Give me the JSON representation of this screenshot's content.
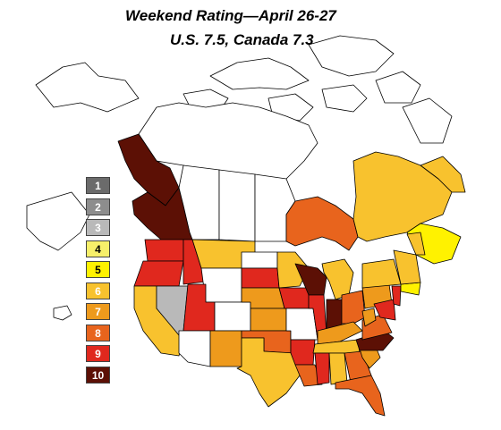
{
  "title_line1": "Weekend Rating—April 26-27",
  "title_line2": "U.S. 7.5, Canada 7.3",
  "legend": [
    {
      "label": "1",
      "color": "#6b6b6b",
      "text_color": "#ffffff"
    },
    {
      "label": "2",
      "color": "#8d8d8d",
      "text_color": "#ffffff"
    },
    {
      "label": "3",
      "color": "#b9b9b9",
      "text_color": "#ffffff"
    },
    {
      "label": "4",
      "color": "#f7ef6a",
      "text_color": "#000000"
    },
    {
      "label": "5",
      "color": "#fff200",
      "text_color": "#000000"
    },
    {
      "label": "6",
      "color": "#f8c22e",
      "text_color": "#ffffff"
    },
    {
      "label": "7",
      "color": "#ee9a1c",
      "text_color": "#ffffff"
    },
    {
      "label": "8",
      "color": "#e8641d",
      "text_color": "#ffffff"
    },
    {
      "label": "9",
      "color": "#e0281e",
      "text_color": "#ffffff"
    },
    {
      "label": "10",
      "color": "#5c1005",
      "text_color": "#ffffff"
    }
  ],
  "regions": {
    "canada_north": {
      "rating": null,
      "color": "#ffffff"
    },
    "yukon": {
      "rating": 10,
      "color": "#5c1005"
    },
    "british_columbia": {
      "rating": 10,
      "color": "#5c1005"
    },
    "alberta": {
      "rating": null,
      "color": "#ffffff"
    },
    "saskatchewan": {
      "rating": null,
      "color": "#ffffff"
    },
    "manitoba": {
      "rating": null,
      "color": "#ffffff"
    },
    "ontario": {
      "rating": 8,
      "color": "#e8641d"
    },
    "quebec": {
      "rating": 6,
      "color": "#f8c22e"
    },
    "newfoundland": {
      "rating": 6,
      "color": "#f8c22e"
    },
    "maritimes": {
      "rating": 5,
      "color": "#fff200"
    },
    "washington": {
      "rating": 9,
      "color": "#e0281e"
    },
    "oregon": {
      "rating": 9,
      "color": "#e0281e"
    },
    "california": {
      "rating": 6,
      "color": "#f8c22e"
    },
    "nevada": {
      "rating": 3,
      "color": "#b9b9b9"
    },
    "idaho": {
      "rating": 9,
      "color": "#e0281e"
    },
    "montana": {
      "rating": 6,
      "color": "#f8c22e"
    },
    "wyoming": {
      "rating": null,
      "color": "#ffffff"
    },
    "utah": {
      "rating": 9,
      "color": "#e0281e"
    },
    "arizona": {
      "rating": null,
      "color": "#ffffff"
    },
    "colorado": {
      "rating": null,
      "color": "#ffffff"
    },
    "new_mexico": {
      "rating": 7,
      "color": "#ee9a1c"
    },
    "north_dakota": {
      "rating": null,
      "color": "#ffffff"
    },
    "south_dakota": {
      "rating": 9,
      "color": "#e0281e"
    },
    "nebraska": {
      "rating": 7,
      "color": "#ee9a1c"
    },
    "kansas": {
      "rating": 7,
      "color": "#ee9a1c"
    },
    "oklahoma": {
      "rating": 8,
      "color": "#e8641d"
    },
    "texas": {
      "rating": 6,
      "color": "#f8c22e"
    },
    "minnesota": {
      "rating": 6,
      "color": "#f8c22e"
    },
    "iowa": {
      "rating": 9,
      "color": "#e0281e"
    },
    "missouri": {
      "rating": null,
      "color": "#ffffff"
    },
    "arkansas": {
      "rating": 9,
      "color": "#e0281e"
    },
    "louisiana": {
      "rating": 8,
      "color": "#e8641d"
    },
    "wisconsin": {
      "rating": 10,
      "color": "#5c1005"
    },
    "illinois": {
      "rating": 9,
      "color": "#e0281e"
    },
    "michigan": {
      "rating": 6,
      "color": "#f8c22e"
    },
    "indiana": {
      "rating": 10,
      "color": "#5c1005"
    },
    "ohio": {
      "rating": 8,
      "color": "#e8641d"
    },
    "kentucky": {
      "rating": 7,
      "color": "#ee9a1c"
    },
    "tennessee": {
      "rating": 6,
      "color": "#f8c22e"
    },
    "mississippi": {
      "rating": 9,
      "color": "#e0281e"
    },
    "alabama": {
      "rating": 6,
      "color": "#f8c22e"
    },
    "georgia": {
      "rating": 8,
      "color": "#e8641d"
    },
    "florida": {
      "rating": 8,
      "color": "#e8641d"
    },
    "south_carolina": {
      "rating": 7,
      "color": "#ee9a1c"
    },
    "north_carolina": {
      "rating": 10,
      "color": "#5c1005"
    },
    "virginia": {
      "rating": 8,
      "color": "#e8641d"
    },
    "west_virginia": {
      "rating": 7,
      "color": "#ee9a1c"
    },
    "pennsylvania": {
      "rating": 7,
      "color": "#ee9a1c"
    },
    "maryland": {
      "rating": 9,
      "color": "#e0281e"
    },
    "new_york": {
      "rating": 6,
      "color": "#f8c22e"
    },
    "new_england": {
      "rating": 6,
      "color": "#f8c22e"
    },
    "maine": {
      "rating": 6,
      "color": "#f8c22e"
    },
    "new_jersey": {
      "rating": 9,
      "color": "#e0281e"
    },
    "long_island": {
      "rating": 5,
      "color": "#fff200"
    },
    "alaska": {
      "rating": null,
      "color": "#ffffff"
    },
    "hawaii": {
      "rating": null,
      "color": "#ffffff"
    }
  }
}
